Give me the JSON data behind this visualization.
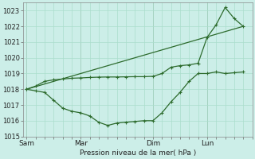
{
  "background_color": "#cceee8",
  "grid_color": "#aaddcc",
  "line_color": "#2d6b2d",
  "xlabel": "Pression niveau de la mer( hPa )",
  "ylim": [
    1015,
    1023.5
  ],
  "yticks": [
    1015,
    1016,
    1017,
    1018,
    1019,
    1020,
    1021,
    1022,
    1023
  ],
  "xtick_labels": [
    "Sam",
    "Mar",
    "Dim",
    "Lun"
  ],
  "xtick_positions": [
    0,
    3,
    7,
    10
  ],
  "xlim": [
    -0.2,
    12.5
  ],
  "vline_positions": [
    0,
    3,
    7,
    10
  ],
  "line1_x": [
    0,
    0.5,
    1.0,
    1.5,
    2.0,
    2.5,
    3.0,
    3.5,
    4.0,
    4.5,
    5.0,
    5.5,
    6.0,
    6.5,
    7.0,
    7.5,
    8.0,
    8.5,
    9.0,
    9.5,
    10.0,
    10.5,
    11.0,
    11.5,
    12.0
  ],
  "line1_y": [
    1018.0,
    1017.9,
    1017.8,
    1017.3,
    1016.8,
    1016.6,
    1016.5,
    1016.3,
    1015.9,
    1015.7,
    1015.85,
    1015.9,
    1015.95,
    1016.0,
    1016.0,
    1016.5,
    1017.2,
    1017.8,
    1018.5,
    1019.0,
    1019.0,
    1019.1,
    1019.0,
    1019.05,
    1019.1
  ],
  "line2_x": [
    0,
    0.5,
    1.0,
    1.5,
    2.0,
    2.5,
    3.0,
    3.5,
    4.0,
    4.5,
    5.0,
    5.5,
    6.0,
    6.5,
    7.0,
    7.5,
    8.0,
    8.5,
    9.0,
    9.5,
    10.0,
    10.5,
    11.0,
    11.5,
    12.0
  ],
  "line2_y": [
    1018.0,
    1018.2,
    1018.5,
    1018.6,
    1018.65,
    1018.7,
    1018.72,
    1018.75,
    1018.77,
    1018.78,
    1018.78,
    1018.79,
    1018.8,
    1018.8,
    1018.82,
    1019.0,
    1019.4,
    1019.5,
    1019.55,
    1019.65,
    1021.3,
    1022.1,
    1023.2,
    1022.5,
    1022.0
  ],
  "line3_x": [
    0,
    12.0
  ],
  "line3_y": [
    1018.0,
    1022.0
  ]
}
